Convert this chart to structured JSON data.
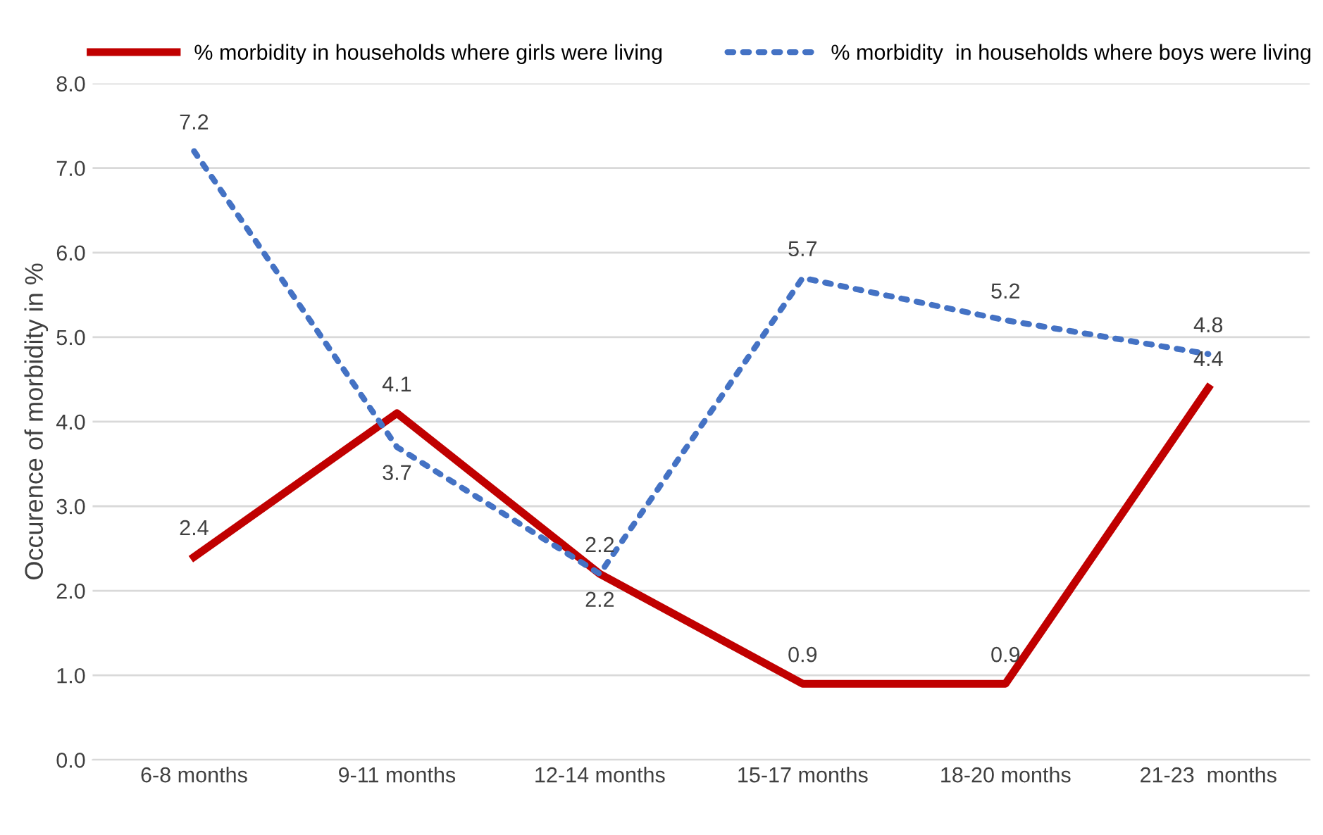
{
  "chart_data": {
    "type": "line",
    "ylabel": "Occurence of morbidity in %",
    "categories": [
      "6-8 months",
      "9-11 months",
      "12-14 months",
      "15-17 months",
      "18-20 months",
      "21-23  months"
    ],
    "series": [
      {
        "name": "% morbidity in households where girls were living",
        "color": "#c00000",
        "line_style": "solid",
        "values": [
          2.4,
          4.1,
          2.2,
          0.9,
          0.9,
          4.4
        ]
      },
      {
        "name": "% morbidity  in households where boys were living",
        "color": "#4472c4",
        "line_style": "dotted",
        "values": [
          7.2,
          3.7,
          2.2,
          5.7,
          5.2,
          4.8
        ]
      }
    ],
    "ylim": [
      0,
      8
    ],
    "yticks": [
      {
        "value": 0,
        "label": "0.0"
      },
      {
        "value": 1,
        "label": "1.0"
      },
      {
        "value": 2,
        "label": "2.0"
      },
      {
        "value": 3,
        "label": "3.0"
      },
      {
        "value": 4,
        "label": "4.0"
      },
      {
        "value": 5,
        "label": "5.0"
      },
      {
        "value": 6,
        "label": "6.0"
      },
      {
        "value": 7,
        "label": "7.0"
      },
      {
        "value": 8,
        "label": "8.0"
      }
    ],
    "grid": "y",
    "legend": "top",
    "data_labels": true,
    "marker": "none"
  }
}
